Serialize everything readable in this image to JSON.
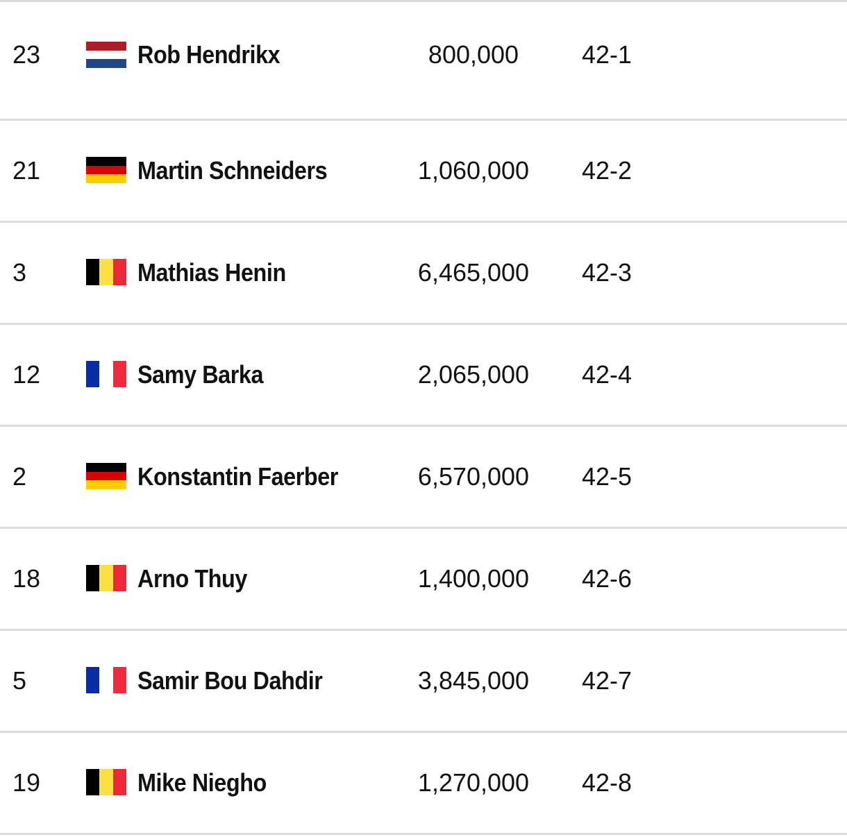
{
  "rows": [
    {
      "rank": "23",
      "flag_icon": "netherlands-flag-icon",
      "flag": {
        "dir": "horizontal",
        "colors": [
          "#AE1C28",
          "#FFFFFF",
          "#21468B"
        ]
      },
      "name": "Rob Hendrikx",
      "value": "800,000",
      "code": "42-1"
    },
    {
      "rank": "21",
      "flag_icon": "germany-flag-icon",
      "flag": {
        "dir": "horizontal",
        "colors": [
          "#000000",
          "#DD0000",
          "#FFCE00"
        ]
      },
      "name": "Martin Schneiders",
      "value": "1,060,000",
      "code": "42-2"
    },
    {
      "rank": "3",
      "flag_icon": "belgium-flag-icon",
      "flag": {
        "dir": "vertical",
        "colors": [
          "#000000",
          "#FAE042",
          "#ED2939"
        ]
      },
      "name": "Mathias Henin",
      "value": "6,465,000",
      "code": "42-3"
    },
    {
      "rank": "12",
      "flag_icon": "france-flag-icon",
      "flag": {
        "dir": "vertical",
        "colors": [
          "#0A2DA6",
          "#FFFFFF",
          "#EF2B3C"
        ]
      },
      "name": "Samy Barka",
      "value": "2,065,000",
      "code": "42-4"
    },
    {
      "rank": "2",
      "flag_icon": "germany-flag-icon",
      "flag": {
        "dir": "horizontal",
        "colors": [
          "#000000",
          "#DD0000",
          "#FFCE00"
        ]
      },
      "name": "Konstantin Faerber",
      "value": "6,570,000",
      "code": "42-5"
    },
    {
      "rank": "18",
      "flag_icon": "belgium-flag-icon",
      "flag": {
        "dir": "vertical",
        "colors": [
          "#000000",
          "#FAE042",
          "#ED2939"
        ]
      },
      "name": "Arno Thuy",
      "value": "1,400,000",
      "code": "42-6"
    },
    {
      "rank": "5",
      "flag_icon": "france-flag-icon",
      "flag": {
        "dir": "vertical",
        "colors": [
          "#0A2DA6",
          "#FFFFFF",
          "#EF2B3C"
        ]
      },
      "name": "Samir Bou Dahdir",
      "value": "3,845,000",
      "code": "42-7"
    },
    {
      "rank": "19",
      "flag_icon": "belgium-flag-icon",
      "flag": {
        "dir": "vertical",
        "colors": [
          "#000000",
          "#FAE042",
          "#ED2939"
        ]
      },
      "name": "Mike Niegho",
      "value": "1,270,000",
      "code": "42-8"
    }
  ]
}
